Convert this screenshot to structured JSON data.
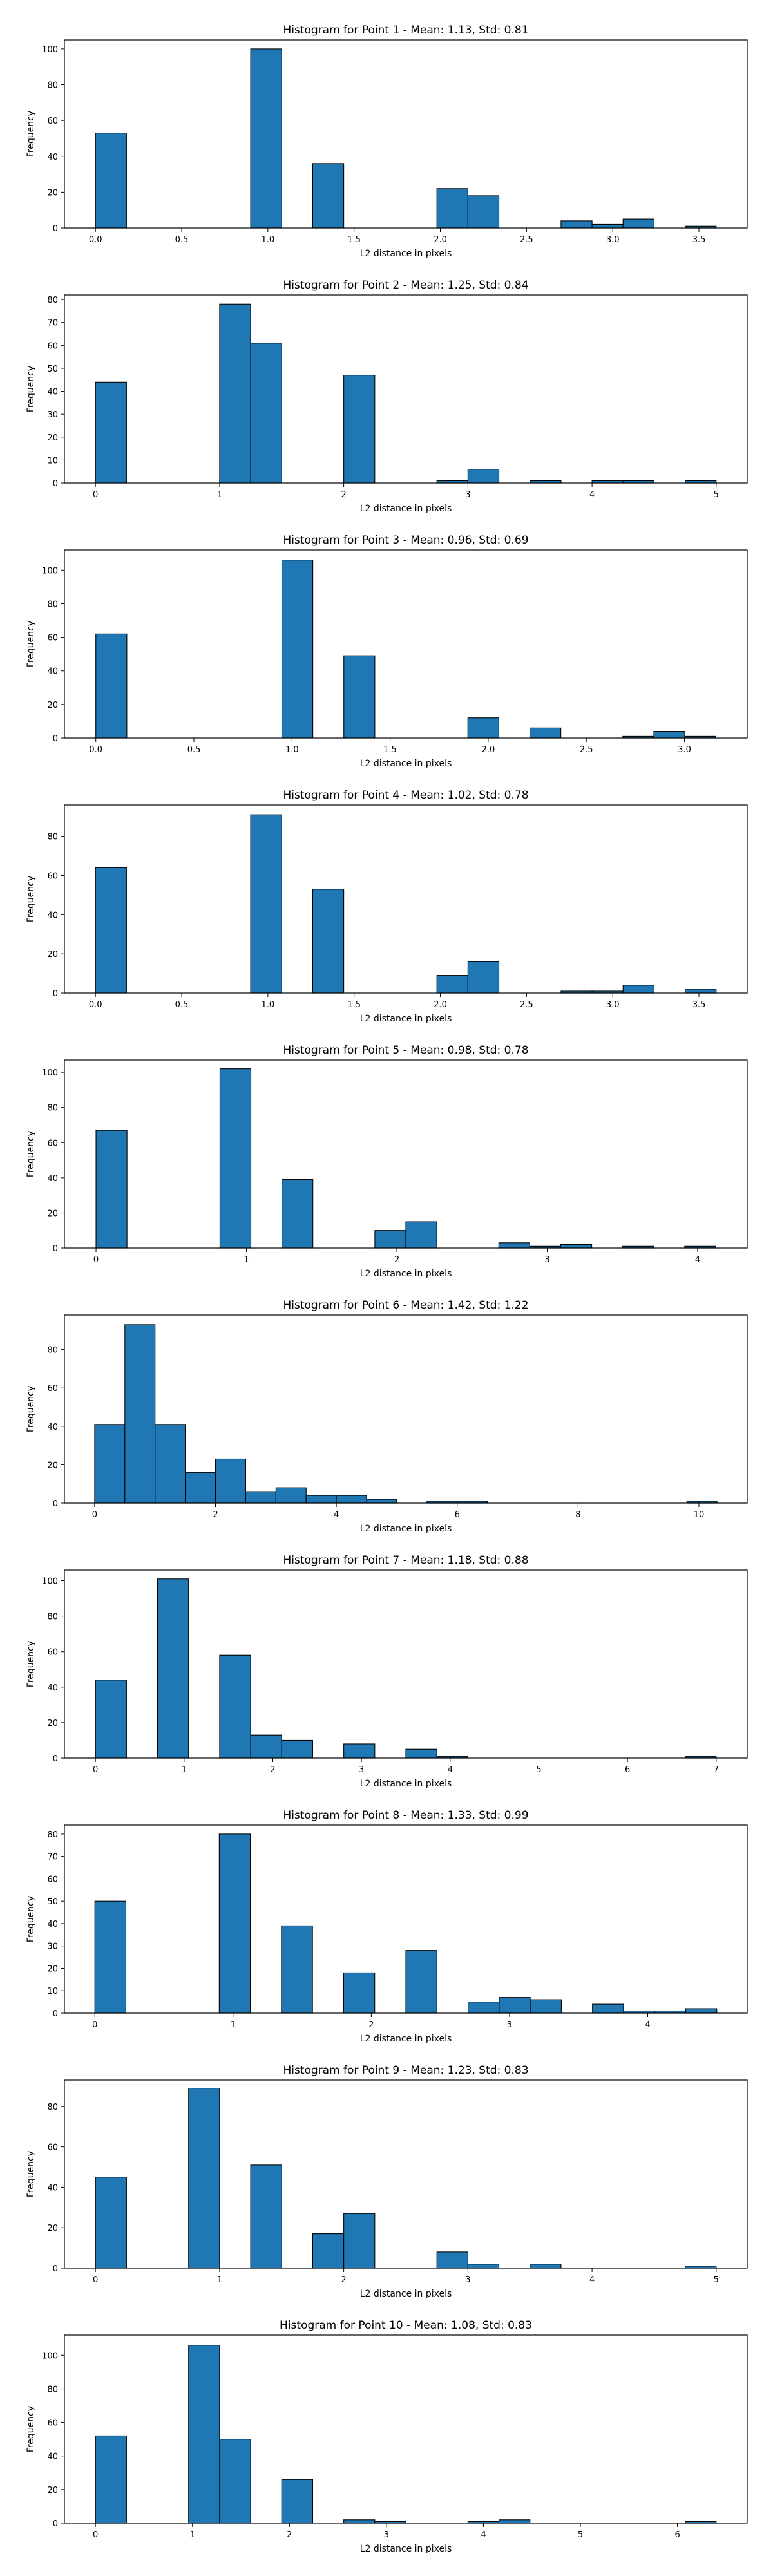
{
  "figure": {
    "bar_color": "#1f77b4",
    "edge_color": "#000000",
    "background": "#ffffff"
  },
  "chart_data": [
    {
      "type": "bar",
      "title": "Histogram for Point 1 - Mean: 1.13, Std: 0.81",
      "xlabel": "L2 distance in pixels",
      "ylabel": "Frequency",
      "xlim": [
        -0.18,
        3.78
      ],
      "ylim": [
        0,
        105
      ],
      "xticks": [
        0.0,
        0.5,
        1.0,
        1.5,
        2.0,
        2.5,
        3.0,
        3.5
      ],
      "xtick_labels": [
        "0.0",
        "0.5",
        "1.0",
        "1.5",
        "2.0",
        "2.5",
        "3.0",
        "3.5"
      ],
      "yticks": [
        0,
        20,
        40,
        60,
        80,
        100
      ],
      "bins": [
        {
          "x0": 0.0,
          "x1": 0.18,
          "count": 53
        },
        {
          "x0": 0.9,
          "x1": 1.08,
          "count": 100
        },
        {
          "x0": 1.26,
          "x1": 1.44,
          "count": 36
        },
        {
          "x0": 1.98,
          "x1": 2.16,
          "count": 22
        },
        {
          "x0": 2.16,
          "x1": 2.34,
          "count": 18
        },
        {
          "x0": 2.7,
          "x1": 2.88,
          "count": 4
        },
        {
          "x0": 2.88,
          "x1": 3.06,
          "count": 2
        },
        {
          "x0": 3.06,
          "x1": 3.24,
          "count": 5
        },
        {
          "x0": 3.42,
          "x1": 3.6,
          "count": 1
        }
      ],
      "grid": false
    },
    {
      "type": "bar",
      "title": "Histogram for Point 2 - Mean: 1.25, Std: 0.84",
      "xlabel": "L2 distance in pixels",
      "ylabel": "Frequency",
      "xlim": [
        -0.25,
        5.25
      ],
      "ylim": [
        0,
        82
      ],
      "xticks": [
        0,
        1,
        2,
        3,
        4,
        5
      ],
      "xtick_labels": [
        "0",
        "1",
        "2",
        "3",
        "4",
        "5"
      ],
      "yticks": [
        0,
        10,
        20,
        30,
        40,
        50,
        60,
        70,
        80
      ],
      "bins": [
        {
          "x0": 0.0,
          "x1": 0.25,
          "count": 44
        },
        {
          "x0": 1.0,
          "x1": 1.25,
          "count": 78
        },
        {
          "x0": 1.25,
          "x1": 1.5,
          "count": 61
        },
        {
          "x0": 2.0,
          "x1": 2.25,
          "count": 47
        },
        {
          "x0": 2.75,
          "x1": 3.0,
          "count": 1
        },
        {
          "x0": 3.0,
          "x1": 3.25,
          "count": 6
        },
        {
          "x0": 3.5,
          "x1": 3.75,
          "count": 1
        },
        {
          "x0": 4.0,
          "x1": 4.25,
          "count": 1
        },
        {
          "x0": 4.25,
          "x1": 4.5,
          "count": 1
        },
        {
          "x0": 4.75,
          "x1": 5.0,
          "count": 1
        }
      ],
      "grid": false
    },
    {
      "type": "bar",
      "title": "Histogram for Point 3 - Mean: 0.96, Std: 0.69",
      "xlabel": "L2 distance in pixels",
      "ylabel": "Frequency",
      "xlim": [
        -0.16,
        3.32
      ],
      "ylim": [
        0,
        112
      ],
      "xticks": [
        0.0,
        0.5,
        1.0,
        1.5,
        2.0,
        2.5,
        3.0
      ],
      "xtick_labels": [
        "0.0",
        "0.5",
        "1.0",
        "1.5",
        "2.0",
        "2.5",
        "3.0"
      ],
      "yticks": [
        0,
        20,
        40,
        60,
        80,
        100
      ],
      "bins": [
        {
          "x0": 0.0,
          "x1": 0.158,
          "count": 62
        },
        {
          "x0": 0.948,
          "x1": 1.106,
          "count": 106
        },
        {
          "x0": 1.264,
          "x1": 1.422,
          "count": 49
        },
        {
          "x0": 1.896,
          "x1": 2.054,
          "count": 12
        },
        {
          "x0": 2.212,
          "x1": 2.37,
          "count": 6
        },
        {
          "x0": 2.686,
          "x1": 2.844,
          "count": 1
        },
        {
          "x0": 2.844,
          "x1": 3.002,
          "count": 4
        },
        {
          "x0": 3.002,
          "x1": 3.16,
          "count": 1
        }
      ],
      "grid": false
    },
    {
      "type": "bar",
      "title": "Histogram for Point 4 - Mean: 1.02, Std: 0.78",
      "xlabel": "L2 distance in pixels",
      "ylabel": "Frequency",
      "xlim": [
        -0.18,
        3.78
      ],
      "ylim": [
        0,
        96
      ],
      "xticks": [
        0.0,
        0.5,
        1.0,
        1.5,
        2.0,
        2.5,
        3.0,
        3.5
      ],
      "xtick_labels": [
        "0.0",
        "0.5",
        "1.0",
        "1.5",
        "2.0",
        "2.5",
        "3.0",
        "3.5"
      ],
      "yticks": [
        0,
        20,
        40,
        60,
        80
      ],
      "bins": [
        {
          "x0": 0.0,
          "x1": 0.18,
          "count": 64
        },
        {
          "x0": 0.9,
          "x1": 1.08,
          "count": 91
        },
        {
          "x0": 1.26,
          "x1": 1.44,
          "count": 53
        },
        {
          "x0": 1.98,
          "x1": 2.16,
          "count": 9
        },
        {
          "x0": 2.16,
          "x1": 2.34,
          "count": 16
        },
        {
          "x0": 2.7,
          "x1": 2.88,
          "count": 1
        },
        {
          "x0": 2.88,
          "x1": 3.06,
          "count": 1
        },
        {
          "x0": 3.06,
          "x1": 3.24,
          "count": 4
        },
        {
          "x0": 3.42,
          "x1": 3.6,
          "count": 2
        }
      ],
      "grid": false
    },
    {
      "type": "bar",
      "title": "Histogram for Point 5 - Mean: 0.98, Std: 0.78",
      "xlabel": "L2 distance in pixels",
      "ylabel": "Frequency",
      "xlim": [
        -0.21,
        4.33
      ],
      "ylim": [
        0,
        107
      ],
      "xticks": [
        0,
        1,
        2,
        3,
        4
      ],
      "xtick_labels": [
        "0",
        "1",
        "2",
        "3",
        "4"
      ],
      "yticks": [
        0,
        20,
        40,
        60,
        80,
        100
      ],
      "bins": [
        {
          "x0": 0.0,
          "x1": 0.206,
          "count": 67
        },
        {
          "x0": 0.824,
          "x1": 1.03,
          "count": 102
        },
        {
          "x0": 1.236,
          "x1": 1.442,
          "count": 39
        },
        {
          "x0": 1.854,
          "x1": 2.06,
          "count": 10
        },
        {
          "x0": 2.06,
          "x1": 2.266,
          "count": 15
        },
        {
          "x0": 2.678,
          "x1": 2.884,
          "count": 3
        },
        {
          "x0": 2.884,
          "x1": 3.09,
          "count": 1
        },
        {
          "x0": 3.09,
          "x1": 3.296,
          "count": 2
        },
        {
          "x0": 3.502,
          "x1": 3.708,
          "count": 1
        },
        {
          "x0": 3.914,
          "x1": 4.12,
          "count": 1
        }
      ],
      "grid": false
    },
    {
      "type": "bar",
      "title": "Histogram for Point 6 - Mean: 1.42, Std: 1.22",
      "xlabel": "L2 distance in pixels",
      "ylabel": "Frequency",
      "xlim": [
        -0.5,
        10.8
      ],
      "ylim": [
        0,
        98
      ],
      "xticks": [
        0,
        2,
        4,
        6,
        8,
        10
      ],
      "xtick_labels": [
        "0",
        "2",
        "4",
        "6",
        "8",
        "10"
      ],
      "yticks": [
        0,
        20,
        40,
        60,
        80
      ],
      "bins": [
        {
          "x0": 0.0,
          "x1": 0.5,
          "count": 41
        },
        {
          "x0": 0.5,
          "x1": 1.0,
          "count": 93
        },
        {
          "x0": 1.0,
          "x1": 1.5,
          "count": 41
        },
        {
          "x0": 1.5,
          "x1": 2.0,
          "count": 16
        },
        {
          "x0": 2.0,
          "x1": 2.5,
          "count": 23
        },
        {
          "x0": 2.5,
          "x1": 3.0,
          "count": 6
        },
        {
          "x0": 3.0,
          "x1": 3.5,
          "count": 8
        },
        {
          "x0": 3.5,
          "x1": 4.0,
          "count": 4
        },
        {
          "x0": 4.0,
          "x1": 4.5,
          "count": 4
        },
        {
          "x0": 4.5,
          "x1": 5.0,
          "count": 2
        },
        {
          "x0": 5.5,
          "x1": 6.0,
          "count": 1
        },
        {
          "x0": 6.0,
          "x1": 6.5,
          "count": 1
        },
        {
          "x0": 9.8,
          "x1": 10.3,
          "count": 1
        }
      ],
      "grid": false
    },
    {
      "type": "bar",
      "title": "Histogram for Point 7 - Mean: 1.18, Std: 0.88",
      "xlabel": "L2 distance in pixels",
      "ylabel": "Frequency",
      "xlim": [
        -0.35,
        7.35
      ],
      "ylim": [
        0,
        106
      ],
      "xticks": [
        0,
        1,
        2,
        3,
        4,
        5,
        6,
        7
      ],
      "xtick_labels": [
        "0",
        "1",
        "2",
        "3",
        "4",
        "5",
        "6",
        "7"
      ],
      "yticks": [
        0,
        20,
        40,
        60,
        80,
        100
      ],
      "bins": [
        {
          "x0": 0.0,
          "x1": 0.35,
          "count": 44
        },
        {
          "x0": 0.7,
          "x1": 1.05,
          "count": 101
        },
        {
          "x0": 1.4,
          "x1": 1.75,
          "count": 58
        },
        {
          "x0": 1.75,
          "x1": 2.1,
          "count": 13
        },
        {
          "x0": 2.1,
          "x1": 2.45,
          "count": 10
        },
        {
          "x0": 2.8,
          "x1": 3.15,
          "count": 8
        },
        {
          "x0": 3.5,
          "x1": 3.85,
          "count": 5
        },
        {
          "x0": 3.85,
          "x1": 4.2,
          "count": 1
        },
        {
          "x0": 6.65,
          "x1": 7.0,
          "count": 1
        }
      ],
      "grid": false
    },
    {
      "type": "bar",
      "title": "Histogram for Point 8 - Mean: 1.33, Std: 0.99",
      "xlabel": "L2 distance in pixels",
      "ylabel": "Frequency",
      "xlim": [
        -0.22,
        4.72
      ],
      "ylim": [
        0,
        84
      ],
      "xticks": [
        0,
        1,
        2,
        3,
        4
      ],
      "xtick_labels": [
        "0",
        "1",
        "2",
        "3",
        "4"
      ],
      "yticks": [
        0,
        10,
        20,
        30,
        40,
        50,
        60,
        70,
        80
      ],
      "bins": [
        {
          "x0": 0.0,
          "x1": 0.225,
          "count": 50
        },
        {
          "x0": 0.9,
          "x1": 1.125,
          "count": 80
        },
        {
          "x0": 1.35,
          "x1": 1.575,
          "count": 39
        },
        {
          "x0": 1.8,
          "x1": 2.025,
          "count": 18
        },
        {
          "x0": 2.25,
          "x1": 2.475,
          "count": 28
        },
        {
          "x0": 2.7,
          "x1": 2.925,
          "count": 5
        },
        {
          "x0": 2.925,
          "x1": 3.15,
          "count": 7
        },
        {
          "x0": 3.15,
          "x1": 3.375,
          "count": 6
        },
        {
          "x0": 3.6,
          "x1": 3.825,
          "count": 4
        },
        {
          "x0": 3.825,
          "x1": 4.05,
          "count": 1
        },
        {
          "x0": 4.05,
          "x1": 4.275,
          "count": 1
        },
        {
          "x0": 4.275,
          "x1": 4.5,
          "count": 2
        }
      ],
      "grid": false
    },
    {
      "type": "bar",
      "title": "Histogram for Point 9 - Mean: 1.23, Std: 0.83",
      "xlabel": "L2 distance in pixels",
      "ylabel": "Frequency",
      "xlim": [
        -0.25,
        5.25
      ],
      "ylim": [
        0,
        93
      ],
      "xticks": [
        0,
        1,
        2,
        3,
        4,
        5
      ],
      "xtick_labels": [
        "0",
        "1",
        "2",
        "3",
        "4",
        "5"
      ],
      "yticks": [
        0,
        20,
        40,
        60,
        80
      ],
      "bins": [
        {
          "x0": 0.0,
          "x1": 0.25,
          "count": 45
        },
        {
          "x0": 0.75,
          "x1": 1.0,
          "count": 89
        },
        {
          "x0": 1.25,
          "x1": 1.5,
          "count": 51
        },
        {
          "x0": 1.75,
          "x1": 2.0,
          "count": 17
        },
        {
          "x0": 2.0,
          "x1": 2.25,
          "count": 27
        },
        {
          "x0": 2.75,
          "x1": 3.0,
          "count": 8
        },
        {
          "x0": 3.0,
          "x1": 3.25,
          "count": 2
        },
        {
          "x0": 3.5,
          "x1": 3.75,
          "count": 2
        },
        {
          "x0": 4.75,
          "x1": 5.0,
          "count": 1
        }
      ],
      "grid": false
    },
    {
      "type": "bar",
      "title": "Histogram for Point 10 - Mean: 1.08, Std: 0.83",
      "xlabel": "L2 distance in pixels",
      "ylabel": "Frequency",
      "xlim": [
        -0.32,
        6.72
      ],
      "ylim": [
        0,
        112
      ],
      "xticks": [
        0,
        1,
        2,
        3,
        4,
        5,
        6
      ],
      "xtick_labels": [
        "0",
        "1",
        "2",
        "3",
        "4",
        "5",
        "6"
      ],
      "yticks": [
        0,
        20,
        40,
        60,
        80,
        100
      ],
      "bins": [
        {
          "x0": 0.0,
          "x1": 0.32,
          "count": 52
        },
        {
          "x0": 0.96,
          "x1": 1.28,
          "count": 106
        },
        {
          "x0": 1.28,
          "x1": 1.6,
          "count": 50
        },
        {
          "x0": 1.92,
          "x1": 2.24,
          "count": 26
        },
        {
          "x0": 2.56,
          "x1": 2.88,
          "count": 2
        },
        {
          "x0": 2.88,
          "x1": 3.2,
          "count": 1
        },
        {
          "x0": 3.84,
          "x1": 4.16,
          "count": 1
        },
        {
          "x0": 4.16,
          "x1": 4.48,
          "count": 2
        },
        {
          "x0": 6.08,
          "x1": 6.4,
          "count": 1
        }
      ],
      "grid": false
    }
  ]
}
